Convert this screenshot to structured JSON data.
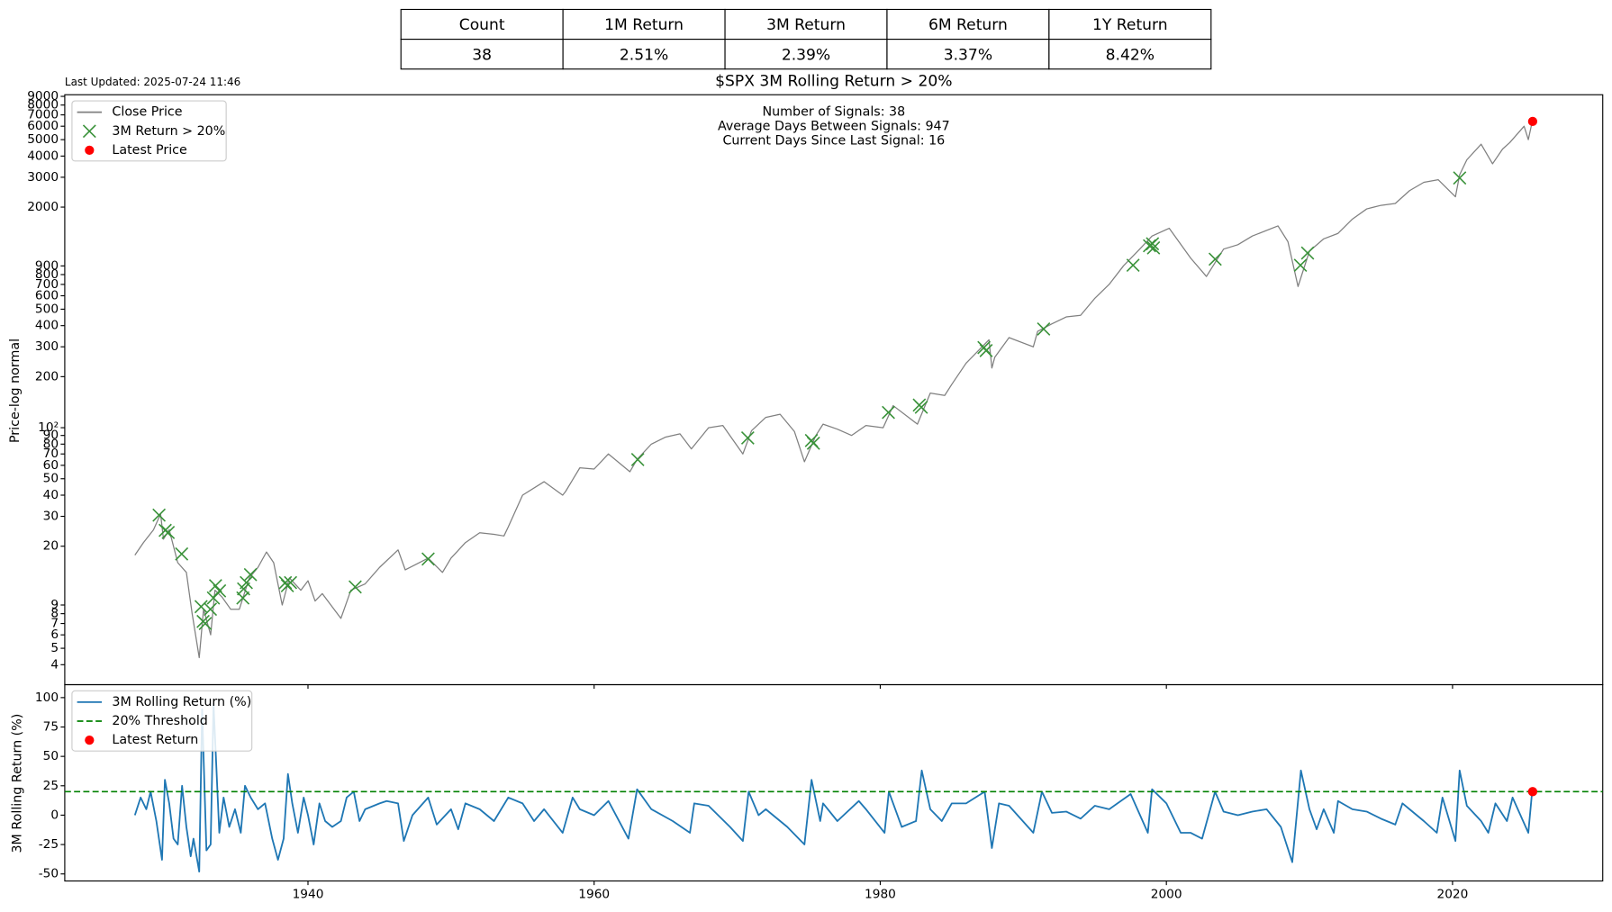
{
  "last_updated": "Last Updated: 2025-07-24 11:46",
  "table": {
    "header": [
      "Count",
      "1M Return",
      "3M Return",
      "6M Return",
      "1Y Return"
    ],
    "rows": [
      [
        "38",
        "2.51%",
        "2.39%",
        "3.37%",
        "8.42%"
      ]
    ]
  },
  "chart_data": [
    {
      "type": "line",
      "title": "$SPX 3M Rolling Return > 20%",
      "ylabel": "Price-log normal",
      "log_y": true,
      "legend": "upper left",
      "annotations": [
        "Number of Signals: 38",
        "Average Days Between Signals: 947",
        "Current Days Since Last Signal: 16"
      ],
      "xlim": [
        1923.0,
        2030.5
      ],
      "ylim": [
        3.05,
        9200
      ],
      "yticks": [
        4,
        5,
        6,
        7,
        8,
        9,
        20,
        30,
        40,
        50,
        60,
        70,
        80,
        90,
        {
          "value": 100,
          "label": "10²"
        },
        200,
        300,
        400,
        500,
        600,
        700,
        800,
        900,
        2000,
        3000,
        4000,
        5000,
        6000,
        7000,
        8000,
        9000
      ],
      "series": [
        {
          "name": "Close Price",
          "color": "#808080",
          "marker": "line",
          "x": [
            1927.9,
            1928.5,
            1929.2,
            1929.7,
            1929.9,
            1930.3,
            1930.9,
            1931.5,
            1931.9,
            1932.4,
            1932.7,
            1933.2,
            1933.5,
            1934,
            1934.6,
            1935.2,
            1935.9,
            1936.5,
            1937.1,
            1937.6,
            1938.2,
            1938.7,
            1939.5,
            1940,
            1940.5,
            1941,
            1942.3,
            1943,
            1944,
            1945,
            1946.3,
            1946.8,
            1948.4,
            1949.4,
            1950,
            1951,
            1952,
            1953,
            1953.7,
            1954,
            1955,
            1956.5,
            1957.8,
            1958,
            1959,
            1960,
            1961,
            1962.5,
            1963,
            1964,
            1965,
            1966,
            1966.8,
            1968,
            1969,
            1970.4,
            1971,
            1972,
            1973,
            1974,
            1974.7,
            1975.5,
            1976,
            1977,
            1978,
            1979,
            1980.2,
            1980.9,
            1982.6,
            1983.5,
            1984.5,
            1985,
            1986,
            1987.6,
            1987.8,
            1988,
            1989,
            1990.7,
            1991,
            1992,
            1993,
            1994,
            1995,
            1996,
            1997,
            1998,
            1999,
            2000.2,
            2001.7,
            2002.8,
            2004,
            2005,
            2006,
            2007.8,
            2008.5,
            2009.2,
            2010,
            2011,
            2012,
            2013,
            2014,
            2015,
            2016,
            2017,
            2018,
            2019,
            2020.2,
            2020.5,
            2021,
            2022,
            2022.8,
            2023.5,
            2024,
            2025,
            2025.3,
            2025.56
          ],
          "values": [
            17.7,
            21,
            25,
            31,
            22,
            25,
            16,
            14,
            8,
            4.4,
            8.5,
            6,
            11,
            10,
            8.5,
            8.5,
            13,
            15,
            18.5,
            16,
            9,
            13,
            11,
            12.5,
            9.5,
            10.5,
            7.5,
            11,
            12,
            15,
            19,
            14.5,
            17,
            14,
            17,
            21,
            24,
            23.5,
            23,
            26,
            40,
            48,
            40,
            42,
            58,
            57,
            70,
            55,
            65,
            80,
            88,
            92,
            75,
            100,
            103,
            70,
            96,
            115,
            120,
            95,
            63,
            90,
            105,
            98,
            90,
            103,
            100,
            135,
            105,
            160,
            155,
            180,
            240,
            330,
            225,
            260,
            340,
            300,
            370,
            410,
            450,
            460,
            580,
            700,
            900,
            1100,
            1350,
            1500,
            1000,
            780,
            1130,
            1200,
            1350,
            1550,
            1250,
            680,
            1100,
            1300,
            1400,
            1700,
            1950,
            2050,
            2100,
            2500,
            2800,
            2900,
            2300,
            3100,
            3800,
            4700,
            3600,
            4400,
            4800,
            6000,
            5000,
            6350
          ]
        },
        {
          "name": "3M Return > 20%",
          "color": "#3a923a",
          "marker": "x",
          "x": [
            1929.59,
            1930.02,
            1930.23,
            1931.17,
            1932.53,
            1932.67,
            1932.82,
            1933.18,
            1933.39,
            1933.54,
            1933.82,
            1935.45,
            1935.5,
            1935.69,
            1935.98,
            1938.42,
            1938.56,
            1938.78,
            1943.3,
            1948.4,
            1963.05,
            1970.74,
            1975.19,
            1975.33,
            1980.57,
            1982.73,
            1982.87,
            1987.25,
            1987.4,
            1991.42,
            1997.67,
            1998.82,
            1999.03,
            1999.1,
            2003.41,
            2009.37,
            2009.87,
            2020.5
          ],
          "values": [
            30.5,
            24.8,
            24.1,
            18,
            8.8,
            7.2,
            7,
            8.5,
            9.9,
            11.7,
            10.9,
            9.9,
            11.2,
            12.2,
            13.6,
            12.2,
            11.7,
            12.2,
            11.5,
            16.8,
            64.9,
            87,
            84,
            81,
            123,
            136,
            132,
            297,
            285,
            382,
            908,
            1183,
            1216,
            1150,
            986,
            908,
            1072,
            2970
          ]
        },
        {
          "name": "Latest Price",
          "color": "#ff0000",
          "marker": "o",
          "x": [
            2025.6
          ],
          "values": [
            6400
          ]
        }
      ]
    },
    {
      "type": "line",
      "ylabel": "3M Rolling Return (%)",
      "legend": "upper left",
      "xlim": [
        1923.0,
        2030.5
      ],
      "ylim": [
        -56,
        111
      ],
      "xticks": [
        1940,
        1960,
        1980,
        2000,
        2020
      ],
      "yticks": [
        -50,
        -25,
        0,
        25,
        50,
        75,
        100
      ],
      "series": [
        {
          "name": "3M Rolling Return (%)",
          "color": "#1f77b4",
          "marker": "line",
          "x": [
            1927.9,
            1928.3,
            1928.7,
            1929.0,
            1929.4,
            1929.8,
            1930.0,
            1930.3,
            1930.6,
            1930.9,
            1931.2,
            1931.5,
            1931.8,
            1932.0,
            1932.4,
            1932.6,
            1932.9,
            1933.2,
            1933.4,
            1933.6,
            1933.8,
            1934.1,
            1934.5,
            1934.9,
            1935.3,
            1935.6,
            1936.0,
            1936.5,
            1937.0,
            1937.5,
            1937.9,
            1938.3,
            1938.6,
            1938.9,
            1939.3,
            1939.7,
            1940.0,
            1940.4,
            1940.8,
            1941.2,
            1941.7,
            1942.3,
            1942.7,
            1943.2,
            1943.6,
            1944,
            1945,
            1945.5,
            1946.3,
            1946.7,
            1947.3,
            1948.4,
            1949,
            1950,
            1950.5,
            1951,
            1952,
            1953,
            1954,
            1955,
            1955.8,
            1956.5,
            1957.8,
            1958.5,
            1959,
            1960,
            1961,
            1962.4,
            1963,
            1964,
            1965.5,
            1966.7,
            1967,
            1968,
            1969.5,
            1970.4,
            1970.8,
            1971.5,
            1972,
            1973.5,
            1974.7,
            1975.2,
            1975.8,
            1976,
            1977,
            1978.5,
            1979,
            1980.3,
            1980.6,
            1981.5,
            1982.5,
            1982.9,
            1983.5,
            1984.3,
            1985,
            1986,
            1987.3,
            1987.8,
            1988.3,
            1989,
            1990.7,
            1991.3,
            1992,
            1993,
            1994,
            1995,
            1996,
            1997.5,
            1998.7,
            1999,
            2000,
            2001,
            2001.7,
            2002.5,
            2003.4,
            2004,
            2005,
            2006,
            2007,
            2008,
            2008.8,
            2009.4,
            2010,
            2010.5,
            2011,
            2011.7,
            2012,
            2013,
            2014,
            2015,
            2016,
            2016.5,
            2017,
            2018,
            2018.9,
            2019.3,
            2020.2,
            2020.5,
            2021,
            2022,
            2022.5,
            2023,
            2023.8,
            2024.2,
            2025.3,
            2025.56
          ],
          "values": [
            0,
            15,
            5,
            20,
            -5,
            -38,
            30,
            10,
            -20,
            -25,
            25,
            -10,
            -35,
            -20,
            -48,
            90,
            -30,
            -25,
            95,
            40,
            -15,
            15,
            -10,
            5,
            -15,
            25,
            15,
            5,
            10,
            -20,
            -38,
            -20,
            35,
            10,
            -15,
            15,
            0,
            -25,
            10,
            -5,
            -10,
            -5,
            15,
            20,
            -5,
            5,
            10,
            12,
            10,
            -22,
            0,
            15,
            -8,
            5,
            -12,
            10,
            5,
            -5,
            15,
            10,
            -5,
            5,
            -15,
            15,
            5,
            0,
            12,
            -20,
            22,
            5,
            -5,
            -15,
            10,
            8,
            -10,
            -22,
            20,
            0,
            5,
            -10,
            -25,
            30,
            -5,
            10,
            -5,
            12,
            5,
            -15,
            20,
            -10,
            -5,
            38,
            5,
            -5,
            10,
            10,
            20,
            -28,
            10,
            8,
            -15,
            20,
            2,
            3,
            -3,
            8,
            5,
            18,
            -15,
            22,
            10,
            -15,
            -15,
            -20,
            20,
            3,
            0,
            3,
            5,
            -10,
            -40,
            38,
            5,
            -12,
            5,
            -15,
            12,
            5,
            3,
            -3,
            -8,
            10,
            5,
            -5,
            -15,
            15,
            -22,
            38,
            8,
            -5,
            -15,
            10,
            -5,
            15,
            -15,
            20
          ]
        },
        {
          "name": "20% Threshold",
          "color": "#008000",
          "marker": "hline",
          "hline": 20
        },
        {
          "name": "Latest Return",
          "color": "#ff0000",
          "marker": "o",
          "x": [
            2025.6
          ],
          "values": [
            20
          ]
        }
      ]
    }
  ]
}
